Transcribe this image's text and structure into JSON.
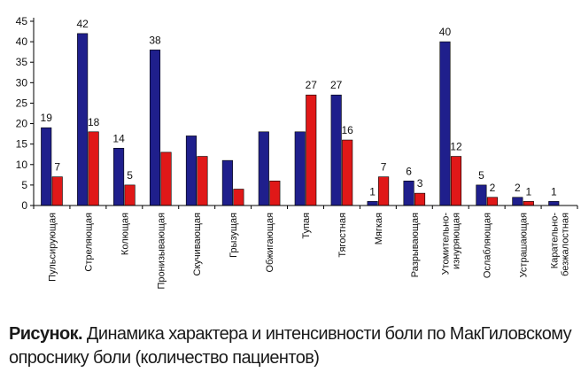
{
  "chart_data": {
    "type": "bar",
    "categories": [
      [
        "Пульсирующая"
      ],
      [
        "Стреляющая"
      ],
      [
        "Колющая"
      ],
      [
        "Пронизывающая"
      ],
      [
        "Скучивающая"
      ],
      [
        "Грызущая"
      ],
      [
        "Обжигающая"
      ],
      [
        "Тупая"
      ],
      [
        "Тягостная"
      ],
      [
        "Мягкая"
      ],
      [
        "Разрывающая"
      ],
      [
        "Утомительно-",
        "изнуряющая"
      ],
      [
        "Ослабляющая"
      ],
      [
        "Устрашающая"
      ],
      [
        "Карательно-",
        "безжалостная"
      ]
    ],
    "series": [
      {
        "values": [
          19,
          42,
          14,
          38,
          17,
          11,
          18,
          18,
          27,
          1,
          6,
          40,
          5,
          2,
          1
        ]
      },
      {
        "values": [
          7,
          18,
          5,
          13,
          12,
          4,
          6,
          27,
          16,
          7,
          3,
          12,
          2,
          1,
          0
        ]
      }
    ],
    "data_labels": [
      [
        19,
        42,
        14,
        38,
        null,
        null,
        null,
        null,
        27,
        1,
        6,
        40,
        5,
        2,
        1
      ],
      [
        7,
        18,
        5,
        null,
        null,
        null,
        null,
        27,
        16,
        7,
        3,
        12,
        2,
        1,
        null
      ]
    ],
    "colors": [
      "#1f1f8c",
      "#e01818"
    ],
    "ylim": [
      0,
      45
    ],
    "yticks": [
      0,
      5,
      10,
      15,
      20,
      25,
      30,
      35,
      40,
      45
    ],
    "grid": false,
    "legend": "none"
  },
  "caption": {
    "label": "Рисунок.",
    "text": "Динамика характера и интенсивности боли по МакГиловскому опроснику боли (количество пациентов)"
  }
}
